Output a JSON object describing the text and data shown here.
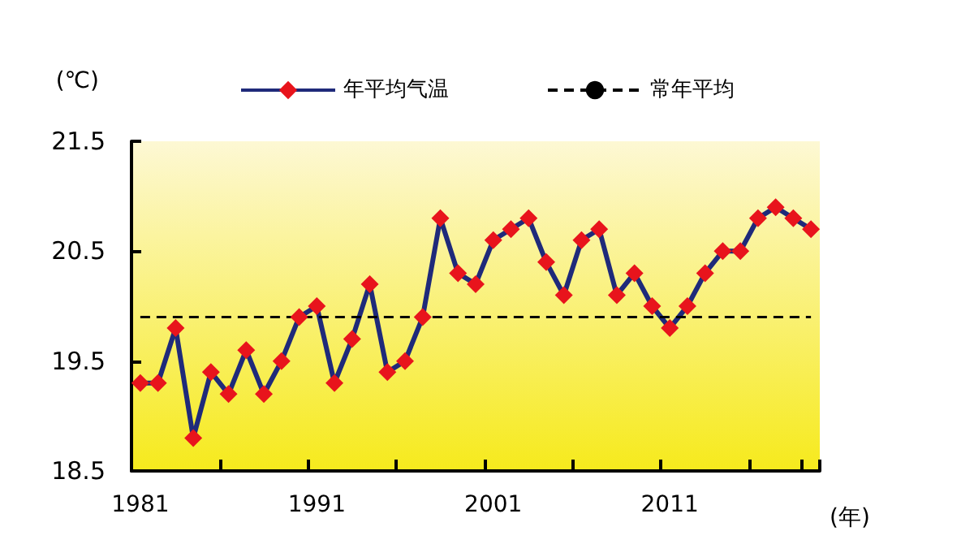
{
  "chart_data": {
    "type": "line",
    "xlabel": "(年)",
    "ylabel": "(℃)",
    "categories": [
      "1981",
      null,
      null,
      null,
      null,
      null,
      null,
      null,
      null,
      null,
      "1991",
      null,
      null,
      null,
      null,
      null,
      null,
      null,
      null,
      null,
      "2001",
      null,
      null,
      null,
      null,
      null,
      null,
      null,
      null,
      null,
      "2011",
      null,
      null,
      null,
      null,
      null,
      null,
      null,
      null
    ],
    "series": [
      {
        "name": "年平均气温",
        "color": "#1f2a7a",
        "marker": "diamond",
        "colors": [
          "#e8141c",
          "#e8141c",
          "#e8141c",
          "#e8141c",
          "#e8141c",
          "#e8141c",
          "#e8141c",
          "#e8141c",
          "#e8141c",
          "#e8141c",
          "#e8141c",
          "#e8141c",
          "#e8141c",
          "#e8141c",
          "#e8141c",
          "#e8141c",
          "#e8141c",
          "#e8141c",
          "#e8141c",
          "#e8141c",
          "#e8141c",
          "#e8141c",
          "#e8141c",
          "#e8141c",
          "#e8141c",
          "#e8141c",
          "#e8141c",
          "#e8141c",
          "#e8141c",
          "#e8141c",
          "#e8141c",
          "#e8141c",
          "#e8141c",
          "#e8141c",
          "#e8141c",
          "#e8141c",
          "#e8141c",
          "#e8141c",
          "#e8141c"
        ],
        "values": [
          19.3,
          19.3,
          19.8,
          18.8,
          19.4,
          19.2,
          19.6,
          19.2,
          19.5,
          19.9,
          20.0,
          19.3,
          19.7,
          20.2,
          19.4,
          19.5,
          19.9,
          20.8,
          20.3,
          20.2,
          20.6,
          20.7,
          20.8,
          20.4,
          20.1,
          20.6,
          20.7,
          20.1,
          20.3,
          20.0,
          19.8,
          20.0,
          20.3,
          20.5,
          20.5,
          20.8,
          20.9,
          20.8,
          20.7
        ]
      },
      {
        "name": "常年平均",
        "color": "#000000",
        "marker": "none",
        "line_style": "dashed",
        "values": [
          19.9,
          19.9,
          19.9,
          19.9,
          19.9,
          19.9,
          19.9,
          19.9,
          19.9,
          19.9,
          19.9,
          19.9,
          19.9,
          19.9,
          19.9,
          19.9,
          19.9,
          19.9,
          19.9,
          19.9,
          19.9,
          19.9,
          19.9,
          19.9,
          19.9,
          19.9,
          19.9,
          19.9,
          19.9,
          19.9,
          19.9,
          19.9,
          19.9,
          19.9,
          19.9,
          19.9,
          19.9,
          19.9,
          19.9
        ]
      }
    ],
    "ylim": [
      18.5,
      21.5
    ],
    "yticks": [
      18.5,
      19.5,
      20.5,
      21.5
    ],
    "grid": false,
    "legend": "top"
  }
}
